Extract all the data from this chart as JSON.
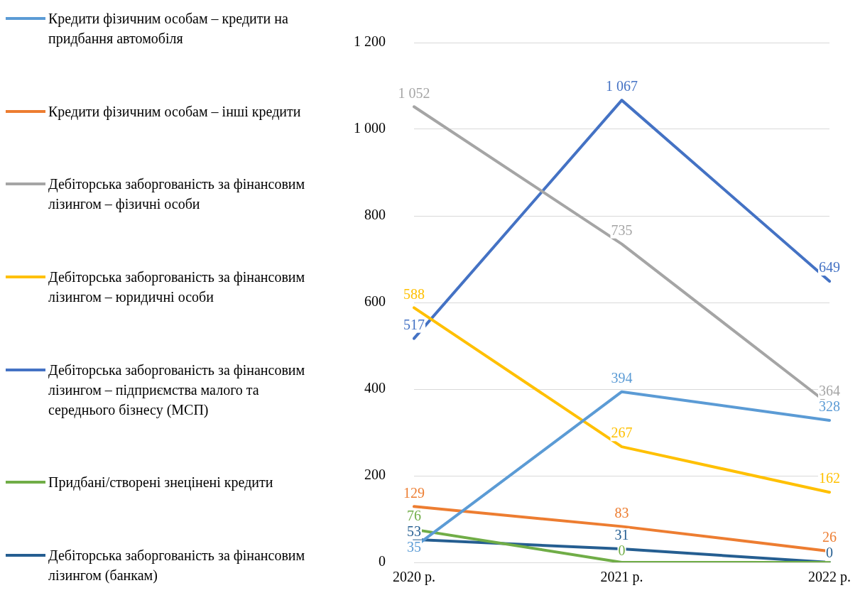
{
  "chart_data": {
    "type": "line",
    "categories": [
      "2020 р.",
      "2021 р.",
      "2022 р."
    ],
    "series": [
      {
        "name": "Кредити фізичним особам – кредити на придбання автомобіля",
        "color": "#5b9bd5",
        "values": [
          35,
          394,
          328
        ],
        "value_labels": [
          "35",
          "394",
          "328"
        ]
      },
      {
        "name": "Кредити фізичним особам – інші кредити",
        "color": "#ed7d31",
        "values": [
          129,
          83,
          26
        ],
        "value_labels": [
          "129",
          "83",
          "26"
        ]
      },
      {
        "name": "Дебіторська заборгованість за фінансовим лізингом – фізичні особи",
        "color": "#a5a5a5",
        "values": [
          1052,
          735,
          364
        ],
        "value_labels": [
          "1 052",
          "735",
          "364"
        ]
      },
      {
        "name": "Дебіторська заборгованість за фінансовим лізингом – юридичні особи",
        "color": "#ffc000",
        "values": [
          588,
          267,
          162
        ],
        "value_labels": [
          "588",
          "267",
          "162"
        ]
      },
      {
        "name": "Дебіторська заборгованість за фінансовим лізингом – підприємства малого та середнього бізнесу (МСП)",
        "color": "#4472c4",
        "values": [
          517,
          1067,
          649
        ],
        "value_labels": [
          "517",
          "1 067",
          "649"
        ]
      },
      {
        "name": "Придбані/створені знецінені кредити",
        "color": "#70ad47",
        "values": [
          76,
          0,
          0
        ],
        "value_labels": [
          "76",
          "0",
          null
        ]
      },
      {
        "name": "Дебіторська заборгованість за фінансовим лізингом (банкам)",
        "color": "#255e91",
        "values": [
          53,
          31,
          0
        ],
        "value_labels": [
          "53",
          "31",
          "0"
        ]
      }
    ],
    "ylim": [
      0,
      1200
    ],
    "yticks": [
      0,
      200,
      400,
      600,
      800,
      {
        "value": 1000,
        "label": "1 000"
      },
      {
        "value": 1200,
        "label": "1 200"
      }
    ],
    "grid": "y",
    "legend": "left",
    "marker": "none",
    "line_style": "solid"
  }
}
